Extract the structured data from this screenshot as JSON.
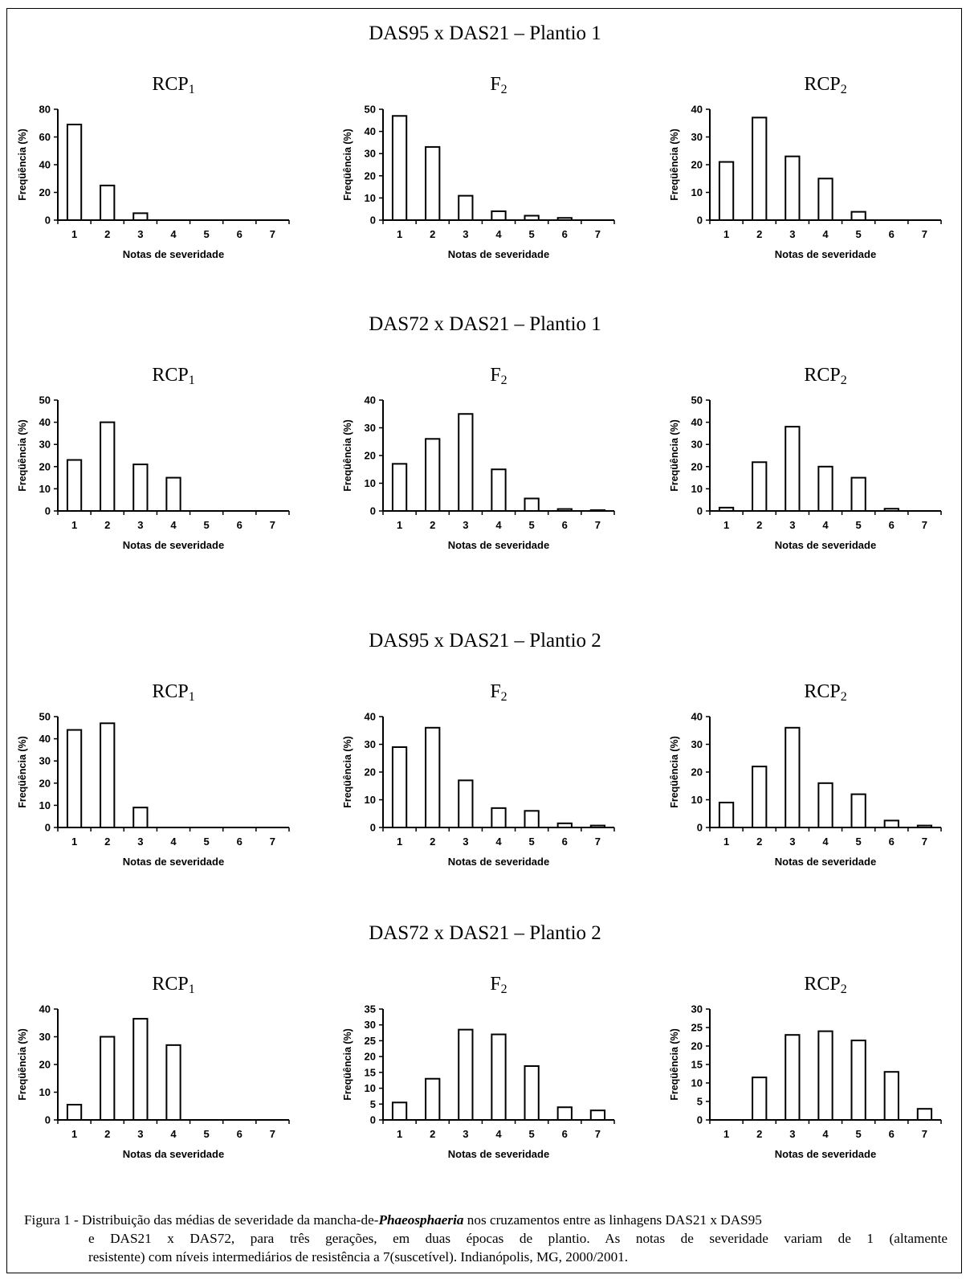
{
  "sections": [
    {
      "title": "DAS95 x DAS21 – Plantio 1"
    },
    {
      "title": "DAS72 x DAS21 – Plantio 1"
    },
    {
      "title": "DAS95 x DAS21 – Plantio 2"
    },
    {
      "title": "DAS72 x DAS21 – Plantio 2"
    }
  ],
  "chart_data": [
    {
      "type": "bar",
      "section": 0,
      "title_base": "RCP",
      "title_sub": "1",
      "categories": [
        "1",
        "2",
        "3",
        "4",
        "5",
        "6",
        "7"
      ],
      "values": [
        69,
        25,
        5,
        0,
        0,
        0,
        0
      ],
      "ylim": [
        0,
        80
      ],
      "yticks": [
        "0",
        "20",
        "40",
        "60",
        "80"
      ],
      "xlabel": "Notas de severidade",
      "ylabel": "Freqüência (%)"
    },
    {
      "type": "bar",
      "section": 0,
      "title_base": "F",
      "title_sub": "2",
      "categories": [
        "1",
        "2",
        "3",
        "4",
        "5",
        "6",
        "7"
      ],
      "values": [
        47,
        33,
        11,
        4,
        2,
        1,
        0
      ],
      "ylim": [
        0,
        50
      ],
      "yticks": [
        "0",
        "10",
        "20",
        "30",
        "40",
        "50"
      ],
      "xlabel": "Notas de severidade",
      "ylabel": "Freqüência (%)"
    },
    {
      "type": "bar",
      "section": 0,
      "title_base": "RCP",
      "title_sub": "2",
      "categories": [
        "1",
        "2",
        "3",
        "4",
        "5",
        "6",
        "7"
      ],
      "values": [
        21,
        37,
        23,
        15,
        3,
        0,
        0
      ],
      "ylim": [
        0,
        40
      ],
      "yticks": [
        "0",
        "10",
        "20",
        "30",
        "40"
      ],
      "xlabel": "Notas de severidade",
      "ylabel": "Freqüência (%)"
    },
    {
      "type": "bar",
      "section": 1,
      "title_base": "RCP",
      "title_sub": "1",
      "categories": [
        "1",
        "2",
        "3",
        "4",
        "5",
        "6",
        "7"
      ],
      "values": [
        23,
        40,
        21,
        15,
        0,
        0,
        0
      ],
      "ylim": [
        0,
        50
      ],
      "yticks": [
        "0",
        "10",
        "20",
        "30",
        "40",
        "50"
      ],
      "xlabel": "Notas de severidade",
      "ylabel": "Freqüência (%)"
    },
    {
      "type": "bar",
      "section": 1,
      "title_base": "F",
      "title_sub": "2",
      "categories": [
        "1",
        "2",
        "3",
        "4",
        "5",
        "6",
        "7"
      ],
      "values": [
        17,
        26,
        35,
        15,
        4.5,
        0.7,
        0.3
      ],
      "ylim": [
        0,
        40
      ],
      "yticks": [
        "0",
        "10",
        "20",
        "30",
        "40"
      ],
      "xlabel": "Notas de severidade",
      "ylabel": "Freqüência (%)"
    },
    {
      "type": "bar",
      "section": 1,
      "title_base": "RCP",
      "title_sub": "2",
      "categories": [
        "1",
        "2",
        "3",
        "4",
        "5",
        "6",
        "7"
      ],
      "values": [
        1.5,
        22,
        38,
        20,
        15,
        1,
        0
      ],
      "ylim": [
        0,
        50
      ],
      "yticks": [
        "0",
        "10",
        "20",
        "30",
        "40",
        "50"
      ],
      "xlabel": "Notas de severidade",
      "ylabel": "Freqüência (%)"
    },
    {
      "type": "bar",
      "section": 2,
      "title_base": "RCP",
      "title_sub": "1",
      "categories": [
        "1",
        "2",
        "3",
        "4",
        "5",
        "6",
        "7"
      ],
      "values": [
        44,
        47,
        9,
        0,
        0,
        0,
        0
      ],
      "ylim": [
        0,
        50
      ],
      "yticks": [
        "0",
        "10",
        "20",
        "30",
        "40",
        "50"
      ],
      "xlabel": "Notas de severidade",
      "ylabel": "Freqüência (%)"
    },
    {
      "type": "bar",
      "section": 2,
      "title_base": "F",
      "title_sub": "2",
      "categories": [
        "1",
        "2",
        "3",
        "4",
        "5",
        "6",
        "7"
      ],
      "values": [
        29,
        36,
        17,
        7,
        6,
        1.5,
        0.7
      ],
      "ylim": [
        0,
        40
      ],
      "yticks": [
        "0",
        "10",
        "20",
        "30",
        "40"
      ],
      "xlabel": "Notas de severidade",
      "ylabel": "Freqüência (%)"
    },
    {
      "type": "bar",
      "section": 2,
      "title_base": "RCP",
      "title_sub": "2",
      "categories": [
        "1",
        "2",
        "3",
        "4",
        "5",
        "6",
        "7"
      ],
      "values": [
        9,
        22,
        36,
        16,
        12,
        2.5,
        0.7
      ],
      "ylim": [
        0,
        40
      ],
      "yticks": [
        "0",
        "10",
        "20",
        "30",
        "40"
      ],
      "xlabel": "Notas de severidade",
      "ylabel": "Freqüência (%)"
    },
    {
      "type": "bar",
      "section": 3,
      "title_base": "RCP",
      "title_sub": "1",
      "categories": [
        "1",
        "2",
        "3",
        "4",
        "5",
        "6",
        "7"
      ],
      "values": [
        5.5,
        30,
        36.5,
        27,
        0,
        0,
        0
      ],
      "ylim": [
        0,
        40
      ],
      "yticks": [
        "0",
        "10",
        "20",
        "30",
        "40"
      ],
      "xlabel": "Notas da severidade",
      "ylabel": "Freqüência (%)"
    },
    {
      "type": "bar",
      "section": 3,
      "title_base": "F",
      "title_sub": "2",
      "categories": [
        "1",
        "2",
        "3",
        "4",
        "5",
        "6",
        "7"
      ],
      "values": [
        5.5,
        13,
        28.5,
        27,
        17,
        4,
        3
      ],
      "ylim": [
        0,
        35
      ],
      "yticks": [
        "0",
        "5",
        "10",
        "15",
        "20",
        "25",
        "30",
        "35"
      ],
      "xlabel": "Notas de severidade",
      "ylabel": "Freqüência (%)"
    },
    {
      "type": "bar",
      "section": 3,
      "title_base": "RCP",
      "title_sub": "2",
      "categories": [
        "1",
        "2",
        "3",
        "4",
        "5",
        "6",
        "7"
      ],
      "values": [
        0,
        11.5,
        23,
        24,
        21.5,
        13,
        3
      ],
      "ylim": [
        0,
        30
      ],
      "yticks": [
        "0",
        "5",
        "10",
        "15",
        "20",
        "25",
        "30"
      ],
      "xlabel": "Notas de severidade",
      "ylabel": "Freqüência (%)"
    }
  ],
  "caption": {
    "line1_pre": "Figura 1 - Distribuição das médias de severidade da mancha-de-",
    "line1_italic": "Phaeosphaeria",
    "line1_post": " nos cruzamentos entre as linhagens DAS21 x DAS95",
    "line2": "e DAS21 x DAS72, para três gerações, em duas épocas de plantio. As notas de severidade variam de 1 (altamente",
    "line3": "resistente) com níveis intermediários de resistência a 7(suscetível). Indianópolis, MG, 2000/2001."
  }
}
